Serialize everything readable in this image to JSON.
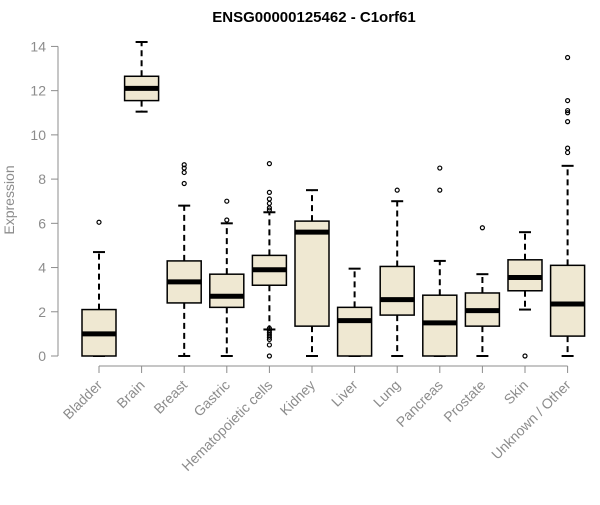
{
  "chart_data": {
    "type": "boxplot",
    "title": "ENSG00000125462 - C1orf61",
    "ylabel": "Expression",
    "xlabel": "",
    "ylim": [
      0,
      14.2
    ],
    "yticks": [
      0,
      2,
      4,
      6,
      8,
      10,
      12,
      14
    ],
    "grid": false,
    "colors": {
      "box_fill": "#efe8d2",
      "box_stroke": "#000000",
      "axis": "#8c8c8c"
    },
    "categories": [
      "Bladder",
      "Brain",
      "Breast",
      "Gastric",
      "Hematopoietic cells",
      "Kidney",
      "Liver",
      "Lung",
      "Pancreas",
      "Prostate",
      "Skin",
      "Unknown / Other"
    ],
    "boxes": [
      {
        "category": "Bladder",
        "whisker_low": 0,
        "q1": 0,
        "median": 1.0,
        "q3": 2.1,
        "whisker_high": 4.7,
        "outliers": [
          6.05
        ]
      },
      {
        "category": "Brain",
        "whisker_low": 11.05,
        "q1": 11.55,
        "median": 12.1,
        "q3": 12.65,
        "whisker_high": 14.2,
        "outliers": []
      },
      {
        "category": "Breast",
        "whisker_low": 0,
        "q1": 2.4,
        "median": 3.35,
        "q3": 4.3,
        "whisker_high": 6.8,
        "outliers": [
          7.8,
          8.3,
          8.5,
          8.65
        ]
      },
      {
        "category": "Gastric",
        "whisker_low": 0,
        "q1": 2.2,
        "median": 2.7,
        "q3": 3.7,
        "whisker_high": 6.0,
        "outliers": [
          6.15,
          7.0
        ]
      },
      {
        "category": "Hematopoietic cells",
        "whisker_low": 1.2,
        "q1": 3.2,
        "median": 3.9,
        "q3": 4.55,
        "whisker_high": 6.5,
        "outliers": [
          0,
          0.5,
          0.75,
          0.85,
          0.95,
          1.05,
          1.15,
          1.25,
          6.6,
          6.7,
          6.9,
          7.1,
          7.4,
          8.7
        ]
      },
      {
        "category": "Kidney",
        "whisker_low": 0,
        "q1": 1.35,
        "median": 5.6,
        "q3": 6.1,
        "whisker_high": 7.5,
        "outliers": []
      },
      {
        "category": "Liver",
        "whisker_low": 0,
        "q1": 0,
        "median": 1.6,
        "q3": 2.2,
        "whisker_high": 3.95,
        "outliers": []
      },
      {
        "category": "Lung",
        "whisker_low": 0,
        "q1": 1.85,
        "median": 2.55,
        "q3": 4.05,
        "whisker_high": 7.0,
        "outliers": [
          7.5
        ]
      },
      {
        "category": "Pancreas",
        "whisker_low": 0,
        "q1": 0,
        "median": 1.5,
        "q3": 2.75,
        "whisker_high": 4.3,
        "outliers": [
          7.5,
          8.5
        ]
      },
      {
        "category": "Prostate",
        "whisker_low": 0,
        "q1": 1.35,
        "median": 2.05,
        "q3": 2.85,
        "whisker_high": 3.7,
        "outliers": [
          5.8
        ]
      },
      {
        "category": "Skin",
        "whisker_low": 2.1,
        "q1": 2.95,
        "median": 3.55,
        "q3": 4.35,
        "whisker_high": 5.6,
        "outliers": [
          0
        ]
      },
      {
        "category": "Unknown / Other",
        "whisker_low": 0,
        "q1": 0.9,
        "median": 2.35,
        "q3": 4.1,
        "whisker_high": 8.6,
        "outliers": [
          9.2,
          9.4,
          10.6,
          11.0,
          11.1,
          11.55,
          13.5
        ]
      }
    ]
  }
}
